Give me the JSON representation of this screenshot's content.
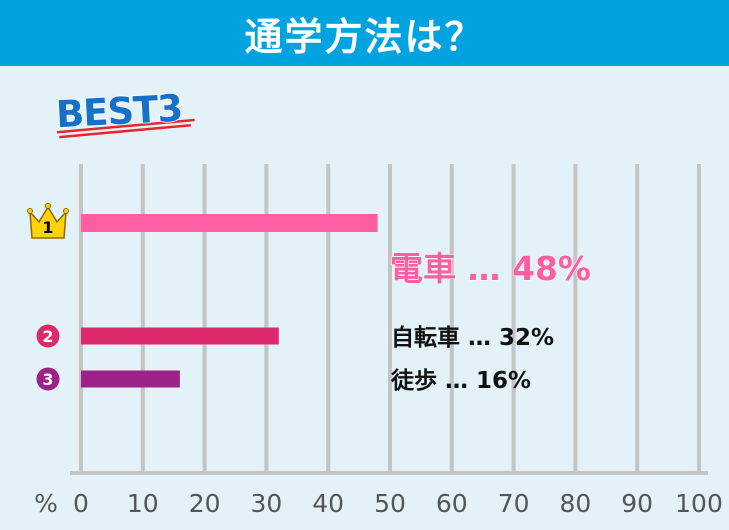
{
  "header": {
    "title": "通学方法は？"
  },
  "badge": {
    "text": "BEST3"
  },
  "colors": {
    "header_bg": "#00a3e0",
    "background": "#e3f1f8",
    "grid": "#c4c4c4",
    "rank1": "#ff5ea3",
    "rank2": "#dc2a6b",
    "rank3": "#9c2287",
    "crown": "#ffd400",
    "badge_text": "#1570c8",
    "underline": "#e8252b"
  },
  "chart_data": {
    "type": "bar",
    "orientation": "horizontal",
    "title": "通学方法は？",
    "unit": "%",
    "xlim": [
      0,
      100
    ],
    "xticks": [
      0,
      10,
      20,
      30,
      40,
      50,
      60,
      70,
      80,
      90,
      100
    ],
    "grid": true,
    "items": [
      {
        "rank": "1",
        "icon": "crown-icon",
        "name": "電車",
        "value": 48,
        "label": "48%",
        "color": "#ff5ea3"
      },
      {
        "rank": "2",
        "icon": "circled-number-icon",
        "name": "自転車",
        "value": 32,
        "label": "32%",
        "color": "#dc2a6b"
      },
      {
        "rank": "3",
        "icon": "circled-number-icon",
        "name": "徒歩",
        "value": 16,
        "label": "16%",
        "color": "#9c2287"
      }
    ],
    "dots": "…"
  }
}
